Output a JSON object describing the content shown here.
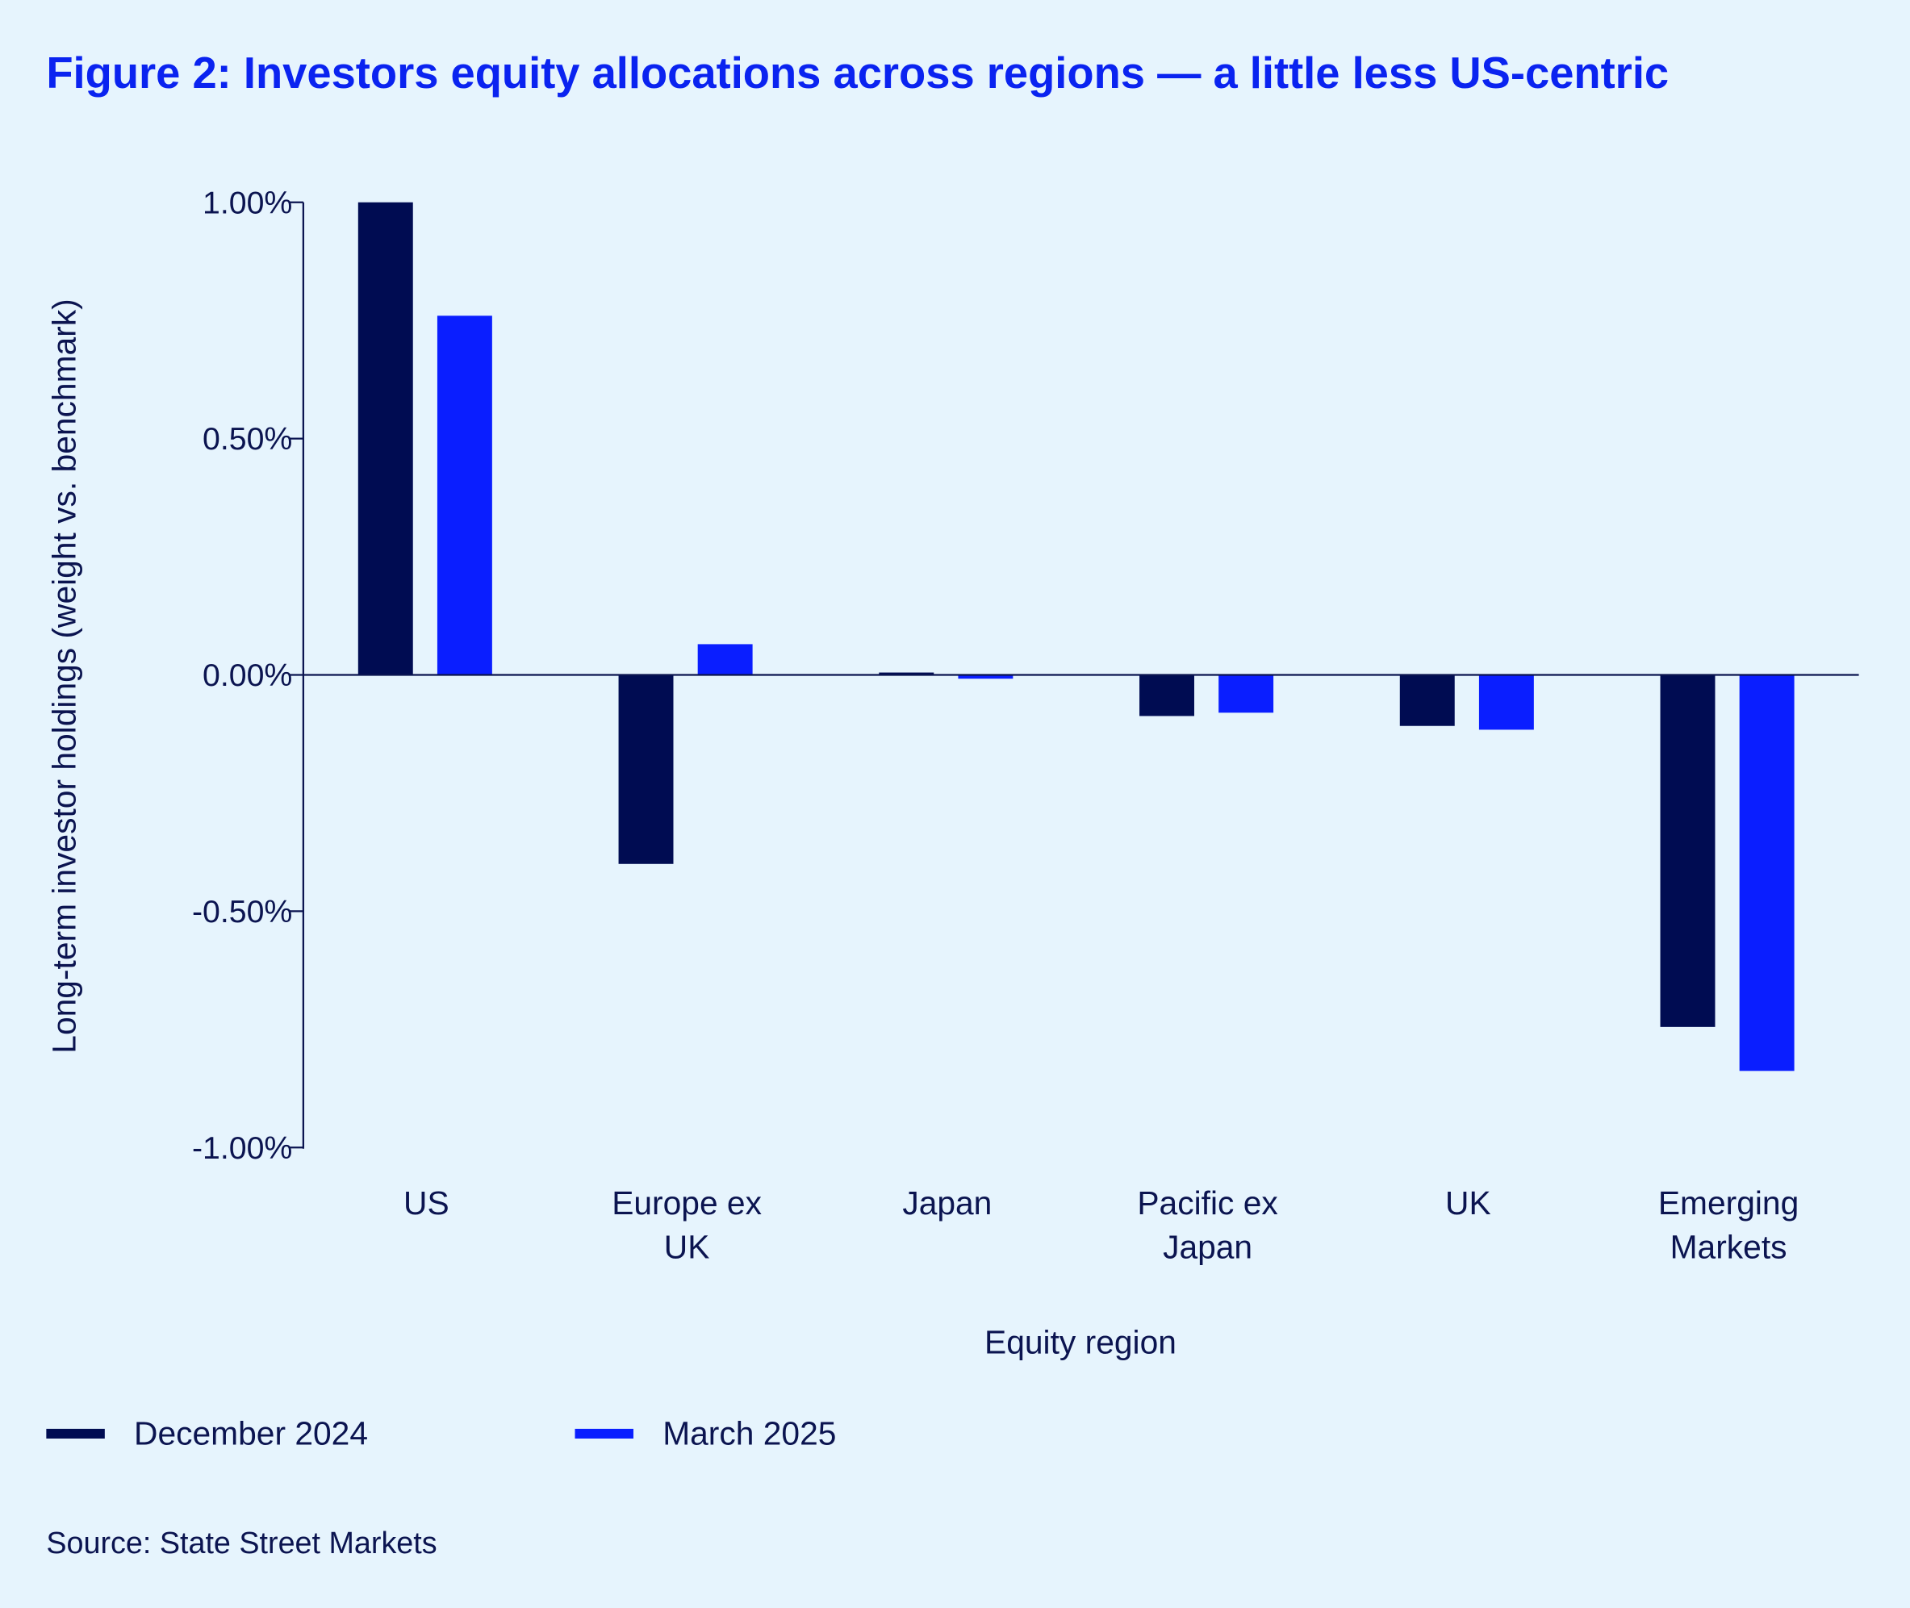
{
  "chart_data": {
    "type": "bar",
    "title": "Figure 2: Investors equity allocations across regions — a little less US-centric",
    "xlabel": "Equity region",
    "ylabel": "Long-term investor holdings (weight vs. benchmark)",
    "categories": [
      [
        "US"
      ],
      [
        "Europe ex",
        "UK"
      ],
      [
        "Japan"
      ],
      [
        "Pacific ex",
        "Japan"
      ],
      [
        "UK"
      ],
      [
        "Emerging",
        "Markets"
      ]
    ],
    "series": [
      {
        "name": "December 2024",
        "color": "#000c52",
        "values": [
          1.0,
          -0.4,
          0.005,
          -0.087,
          -0.108,
          -0.745
        ]
      },
      {
        "name": "March 2025",
        "color": "#0a1eff",
        "values": [
          0.76,
          0.065,
          -0.008,
          -0.08,
          -0.116,
          -0.838
        ]
      }
    ],
    "yticks": [
      1.0,
      0.5,
      0.0,
      -0.5,
      -1.0
    ],
    "ytick_labels": [
      "1.00%",
      "0.50%",
      "0.00%",
      "-0.50%",
      "-1.00%"
    ],
    "ylim": [
      -1.0,
      1.0
    ],
    "legend_position": "bottom-left",
    "source": "Source: State Street Markets"
  }
}
